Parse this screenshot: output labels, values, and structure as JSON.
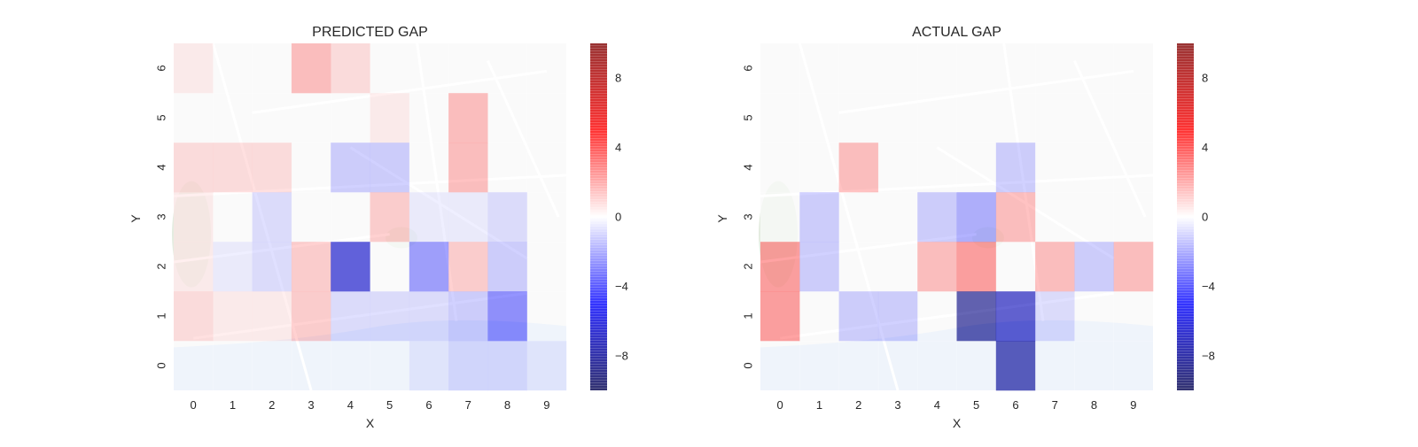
{
  "colorbar": {
    "vmin": -10,
    "vmax": 10,
    "ticks": [
      -8,
      -4,
      0,
      4,
      8
    ],
    "tick_labels": [
      "−8",
      "−4",
      "0",
      "4",
      "8"
    ],
    "colormap": "seismic",
    "colormap_stops": [
      "#00004c",
      "#0000ff",
      "#ffffff",
      "#ff0000",
      "#7f0000"
    ]
  },
  "chart_data": [
    {
      "type": "heatmap",
      "title": "PREDICTED GAP",
      "xlabel": "X",
      "ylabel": "Y",
      "x": [
        0,
        1,
        2,
        3,
        4,
        5,
        6,
        7,
        8,
        9
      ],
      "y": [
        0,
        1,
        2,
        3,
        4,
        5,
        6
      ],
      "xlim": [
        -0.5,
        9.5
      ],
      "ylim": [
        -0.5,
        6.5
      ],
      "grid": false,
      "background": "map",
      "values": [
        [
          0,
          0,
          0,
          0,
          0,
          0,
          -0.5,
          -1,
          -1,
          -0.5
        ],
        [
          1,
          0.5,
          0.5,
          1.5,
          -1,
          -1,
          -1,
          -1.5,
          -3.5,
          0
        ],
        [
          0.5,
          -0.5,
          -1,
          1.5,
          -6.5,
          0,
          -3,
          1.5,
          -1.5,
          0
        ],
        [
          0.5,
          0,
          -1,
          0,
          0,
          1.5,
          -0.5,
          -0.5,
          -1,
          0
        ],
        [
          1,
          1,
          1,
          0,
          -1.5,
          -1.5,
          0,
          2,
          0,
          0
        ],
        [
          0,
          0,
          0,
          0,
          0,
          0.5,
          0,
          2,
          0,
          0
        ],
        [
          0.5,
          0,
          0,
          2,
          1,
          0,
          0,
          0,
          0,
          0
        ]
      ]
    },
    {
      "type": "heatmap",
      "title": "ACTUAL GAP",
      "xlabel": "X",
      "ylabel": "Y",
      "x": [
        0,
        1,
        2,
        3,
        4,
        5,
        6,
        7,
        8,
        9
      ],
      "y": [
        0,
        1,
        2,
        3,
        4,
        5,
        6
      ],
      "xlim": [
        -0.5,
        9.5
      ],
      "ylim": [
        -0.5,
        6.5
      ],
      "grid": false,
      "background": "map",
      "values": [
        [
          0,
          0,
          0,
          0,
          0,
          0,
          -8,
          0,
          0,
          0
        ],
        [
          3,
          0,
          -1.5,
          -1.5,
          0,
          -8.5,
          -7,
          -1,
          0,
          0
        ],
        [
          3,
          -1.5,
          0,
          0,
          2,
          3,
          0,
          2,
          -1.5,
          2
        ],
        [
          0,
          -1.5,
          0,
          0,
          -1.5,
          -2.5,
          2,
          0,
          0,
          0
        ],
        [
          0,
          0,
          2,
          0,
          0,
          0,
          -1.5,
          0,
          0,
          0
        ],
        [
          0,
          0,
          0,
          0,
          0,
          0,
          0,
          0,
          0,
          0
        ],
        [
          0,
          0,
          0,
          0,
          0,
          0,
          0,
          0,
          0,
          0
        ]
      ]
    }
  ]
}
